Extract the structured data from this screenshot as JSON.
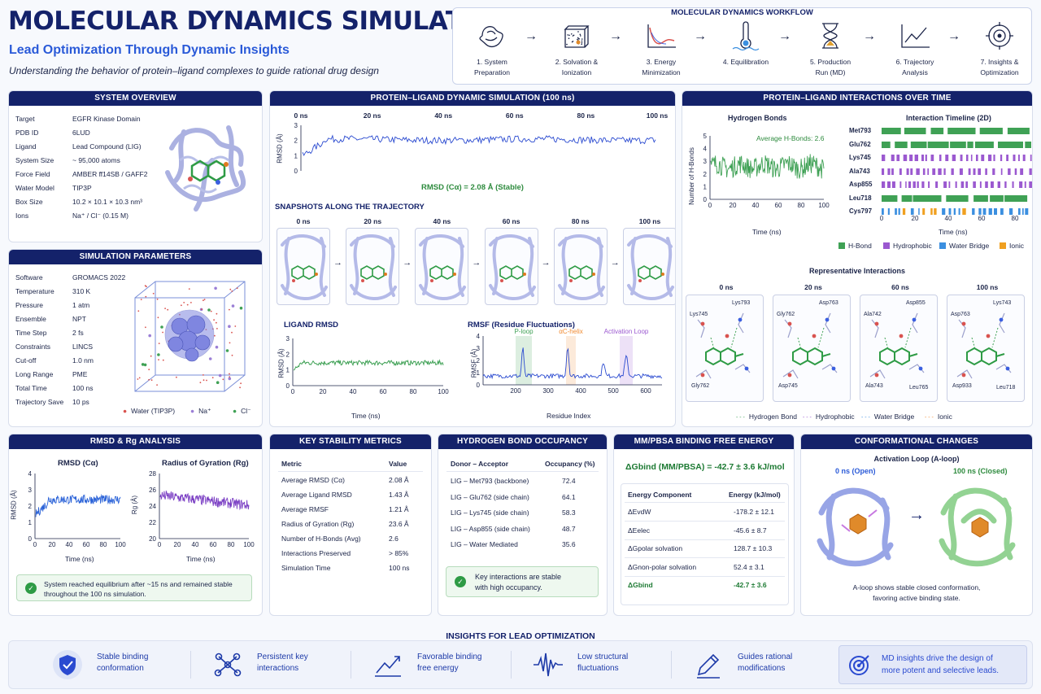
{
  "header": {
    "title": "MOLECULAR DYNAMICS SIMULATION",
    "subtitle": "Lead Optimization Through Dynamic Insights",
    "tagline": "Understanding the behavior of protein–ligand complexes to guide rational drug design"
  },
  "workflow": {
    "title": "MOLECULAR DYNAMICS WORKFLOW",
    "steps": [
      {
        "l1": "1. System",
        "l2": "Preparation",
        "icon": "protein-icon"
      },
      {
        "l1": "2. Solvation &",
        "l2": "Ionization",
        "icon": "solvent-box-icon"
      },
      {
        "l1": "3. Energy",
        "l2": "Minimization",
        "icon": "energy-curve-icon"
      },
      {
        "l1": "4. Equilibration",
        "l2": "",
        "icon": "thermometer-icon"
      },
      {
        "l1": "5. Production",
        "l2": "Run (MD)",
        "icon": "hourglass-icon"
      },
      {
        "l1": "6. Trajectory",
        "l2": "Analysis",
        "icon": "line-chart-icon"
      },
      {
        "l1": "7. Insights &",
        "l2": "Optimization",
        "icon": "target-icon"
      }
    ]
  },
  "system_overview": {
    "title": "SYSTEM OVERVIEW",
    "rows": [
      {
        "k": "Target",
        "v": "EGFR Kinase Domain"
      },
      {
        "k": "PDB ID",
        "v": "6LUD"
      },
      {
        "k": "Ligand",
        "v": "Lead Compound (LIG)"
      },
      {
        "k": "System Size",
        "v": "~ 95,000 atoms"
      },
      {
        "k": "Force Field",
        "v": "AMBER ff14SB / GAFF2"
      },
      {
        "k": "Water Model",
        "v": "TIP3P"
      },
      {
        "k": "Box Size",
        "v": "10.2 × 10.1 × 10.3 nm³"
      },
      {
        "k": "Ions",
        "v": "Na⁺ / Cl⁻ (0.15 M)"
      }
    ]
  },
  "sim_params": {
    "title": "SIMULATION PARAMETERS",
    "rows": [
      {
        "k": "Software",
        "v": "GROMACS 2022"
      },
      {
        "k": "Temperature",
        "v": "310 K"
      },
      {
        "k": "Pressure",
        "v": "1 atm"
      },
      {
        "k": "Ensemble",
        "v": "NPT"
      },
      {
        "k": "Time Step",
        "v": "2 fs"
      },
      {
        "k": "Constraints",
        "v": "LINCS"
      },
      {
        "k": "Cut-off",
        "v": "1.0 nm"
      },
      {
        "k": "Long Range",
        "v": "PME"
      },
      {
        "k": "Total Time",
        "v": "100 ns"
      },
      {
        "k": "Trajectory Save",
        "v": "10 ps"
      }
    ],
    "legend": [
      "Water (TIP3P)",
      "Na⁺",
      "Cl⁻"
    ],
    "legend_colors": [
      "#d9534f",
      "#9b7fd6",
      "#3fa155"
    ]
  },
  "dyn_sim": {
    "title": "PROTEIN–LIGAND DYNAMIC SIMULATION (100 ns)",
    "time_labels": [
      "0 ns",
      "20 ns",
      "40 ns",
      "60 ns",
      "80 ns",
      "100 ns"
    ],
    "ylabel": "RMSD (Å)",
    "yticks": [
      "0",
      "1",
      "2",
      "3"
    ],
    "rmsd_caption": "RMSD (Cα) = 2.08 Å (Stable)",
    "snapshots_title": "SNAPSHOTS ALONG THE TRAJECTORY",
    "snapshot_labels": [
      "0 ns",
      "20 ns",
      "40 ns",
      "60 ns",
      "80 ns",
      "100 ns"
    ],
    "ligand_rmsd_title": "LIGAND RMSD",
    "ligand_rmsd_ylabel": "RMSD (Å)",
    "ligand_rmsd_xlabel": "Time (ns)",
    "rmsf_title": "RMSF (Residue Fluctuations)",
    "rmsf_ylabel": "RMSF (Å)",
    "rmsf_xlabel": "Residue Index",
    "rmsf_regions": [
      "P-loop",
      "αC-helix",
      "Activation Loop"
    ]
  },
  "interactions": {
    "title": "PROTEIN–LIGAND INTERACTIONS OVER TIME",
    "hbond_title": "Hydrogen Bonds",
    "hbond_avg": "Average H-Bonds: 2.6",
    "hbond_ylabel": "Number of H-Bonds",
    "hbond_xlabel": "Time (ns)",
    "timeline_title": "Interaction Timeline (2D)",
    "timeline_xlabel": "Time (ns)",
    "residues": [
      "Met793",
      "Glu762",
      "Lys745",
      "Ala743",
      "Asp855",
      "Leu718",
      "Cys797"
    ],
    "legend": [
      "H-Bond",
      "Hydrophobic",
      "Water Bridge",
      "Ionic"
    ],
    "legend_colors": [
      "#3fa155",
      "#9b59d0",
      "#3b8fe0",
      "#f0a020"
    ],
    "rep_title": "Representative Interactions",
    "rep_times": [
      "0 ns",
      "20 ns",
      "60 ns",
      "100 ns"
    ],
    "rep_labels": [
      [
        "Lys745",
        "Lys793",
        "Gly762"
      ],
      [
        "Gly762",
        "Asp763",
        "Asp745"
      ],
      [
        "Ala742",
        "Asp855",
        "Ala743",
        "Leu765"
      ],
      [
        "Asp763",
        "Lys743",
        "Asp933",
        "Leu718"
      ]
    ],
    "rep_legend": [
      "Hydrogen Bond",
      "Hydrophobic",
      "Water Bridge",
      "Ionic"
    ]
  },
  "rmsd_rg": {
    "title": "RMSD & Rg ANALYSIS",
    "rmsd_title": "RMSD (Cα)",
    "rmsd_ylabel": "RMSD (Å)",
    "rg_title": "Radius of Gyration (Rg)",
    "rg_ylabel": "Rg (Å)",
    "xlabel": "Time (ns)",
    "notice": "System reached equilibrium after ~15 ns and remained stable",
    "notice2": "throughout the 100 ns simulation."
  },
  "stability": {
    "title": "KEY STABILITY METRICS",
    "col1": "Metric",
    "col2": "Value",
    "rows": [
      {
        "k": "Average RMSD (Cα)",
        "v": "2.08 Å"
      },
      {
        "k": "Average Ligand RMSD",
        "v": "1.43 Å"
      },
      {
        "k": "Average RMSF",
        "v": "1.21 Å"
      },
      {
        "k": "Radius of Gyration (Rg)",
        "v": "23.6 Å"
      },
      {
        "k": "Number of H-Bonds (Avg)",
        "v": "2.6"
      },
      {
        "k": "Interactions Preserved",
        "v": "> 85%"
      },
      {
        "k": "Simulation Time",
        "v": "100 ns"
      }
    ]
  },
  "hbond_occ": {
    "title": "HYDROGEN BOND OCCUPANCY",
    "col1": "Donor – Acceptor",
    "col2": "Occupancy (%)",
    "rows": [
      {
        "k": "LIG – Met793 (backbone)",
        "v": "72.4"
      },
      {
        "k": "LIG – Glu762 (side chain)",
        "v": "64.1"
      },
      {
        "k": "LIG – Lys745 (side chain)",
        "v": "58.3"
      },
      {
        "k": "LIG – Asp855 (side chain)",
        "v": "48.7"
      },
      {
        "k": "LIG – Water Mediated",
        "v": "35.6"
      }
    ],
    "notice": "Key interactions are stable",
    "notice2": "with high occupancy."
  },
  "mmpbsa": {
    "title": "MM/PBSA BINDING FREE ENERGY",
    "headline": "ΔGbind (MM/PBSA) = -42.7 ± 3.6 kJ/mol",
    "col1": "Energy Component",
    "col2": "Energy (kJ/mol)",
    "rows": [
      {
        "k": "ΔEvdW",
        "v": "-178.2 ± 12.1"
      },
      {
        "k": "ΔEelec",
        "v": "-45.6 ± 8.7"
      },
      {
        "k": "ΔGpolar solvation",
        "v": "128.7 ± 10.3"
      },
      {
        "k": "ΔGnon-polar solvation",
        "v": "52.4 ± 3.1"
      },
      {
        "k": "ΔGbind",
        "v": "-42.7 ± 3.6"
      }
    ]
  },
  "conform": {
    "title": "CONFORMATIONAL CHANGES",
    "subtitle": "Activation Loop (A-loop)",
    "open": "0 ns (Open)",
    "closed": "100 ns (Closed)",
    "caption": "A-loop shows stable closed conformation,",
    "caption2": "favoring active binding state."
  },
  "insights": {
    "title": "INSIGHTS FOR LEAD OPTIMIZATION",
    "items": [
      {
        "l1": "Stable binding",
        "l2": "conformation"
      },
      {
        "l1": "Persistent key",
        "l2": "interactions"
      },
      {
        "l1": "Favorable binding",
        "l2": "free energy"
      },
      {
        "l1": "Low structural",
        "l2": "fluctuations"
      },
      {
        "l1": "Guides rational",
        "l2": "modifications"
      }
    ],
    "final1": "MD insights drive the design of",
    "final2": "more potent and selective leads."
  },
  "chart_data": [
    {
      "type": "line",
      "title": "",
      "ylabel": "RMSD (Å)",
      "x_range": [
        0,
        100
      ],
      "ylim": [
        0,
        3
      ],
      "series": [
        {
          "values_summary_mean": 2.08
        }
      ]
    },
    {
      "type": "line",
      "title": "LIGAND RMSD",
      "xlabel": "Time (ns)",
      "ylabel": "RMSD (Å)",
      "x": [
        0,
        20,
        40,
        60,
        80,
        100
      ],
      "xlim": [
        0,
        100
      ],
      "ylim": [
        0,
        3
      ],
      "series": [
        {
          "values": [
            1.0,
            1.35,
            1.45,
            1.45,
            1.45,
            1.45
          ]
        }
      ]
    },
    {
      "type": "line",
      "title": "RMSF (Residue Fluctuations)",
      "xlabel": "Residue Index",
      "ylabel": "RMSF (Å)",
      "xlim": [
        100,
        650
      ],
      "ylim": [
        0,
        4
      ],
      "x": [
        200,
        300,
        400,
        500,
        600
      ],
      "series": [
        {
          "values": [
            0.6,
            0.7,
            0.9,
            0.8,
            0.6
          ]
        }
      ]
    },
    {
      "type": "line",
      "title": "Hydrogen Bonds",
      "xlabel": "Time (ns)",
      "ylabel": "Number of H-Bonds",
      "xlim": [
        0,
        100
      ],
      "ylim": [
        0,
        5
      ],
      "x": [
        0,
        20,
        40,
        60,
        80,
        100
      ],
      "series": [
        {
          "values": [
            2.6,
            2.6,
            2.6,
            2.6,
            2.6,
            2.6
          ]
        }
      ]
    },
    {
      "type": "line",
      "title": "RMSD (Cα)",
      "xlabel": "Time (ns)",
      "ylabel": "RMSD (Å)",
      "xlim": [
        0,
        100
      ],
      "ylim": [
        0,
        4
      ],
      "x": [
        0,
        20,
        40,
        60,
        80,
        100
      ],
      "series": [
        {
          "values": [
            1.5,
            2.2,
            2.4,
            2.5,
            2.5,
            2.5
          ]
        }
      ]
    },
    {
      "type": "line",
      "title": "Radius of Gyration (Rg)",
      "xlabel": "Time (ns)",
      "ylabel": "Rg (Å)",
      "xlim": [
        0,
        100
      ],
      "ylim": [
        20,
        28
      ],
      "x": [
        0,
        20,
        40,
        60,
        80,
        100
      ],
      "series": [
        {
          "values": [
            25.5,
            24.5,
            24.3,
            24.0,
            24.0,
            24.0
          ]
        }
      ]
    }
  ]
}
